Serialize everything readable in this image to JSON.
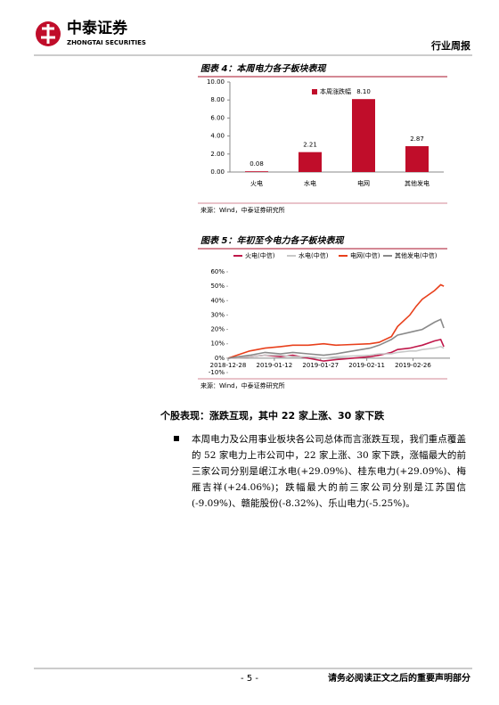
{
  "header": {
    "company": "中泰证券",
    "company_en": "ZHONGTAI SECURITIES",
    "report_type": "行业周报"
  },
  "chart_data": [
    {
      "type": "bar",
      "title": "图表 4：本周电力各子板块表现",
      "categories": [
        "火电",
        "水电",
        "电网",
        "其他发电"
      ],
      "series": [
        {
          "name": "本周涨跌幅",
          "color": "#c00d2a",
          "values": [
            0.08,
            2.21,
            8.1,
            2.87
          ],
          "value_labels": [
            "0.08",
            "2.21",
            "8.10",
            "2.87"
          ]
        }
      ],
      "ylim": [
        0,
        10
      ],
      "yticks": [
        {
          "value": 0,
          "label": "0.00"
        },
        {
          "value": 2,
          "label": "2.00"
        },
        {
          "value": 4,
          "label": "4.00"
        },
        {
          "value": 6,
          "label": "6.00"
        },
        {
          "value": 8,
          "label": "8.00"
        },
        {
          "value": 10,
          "label": "10.00"
        }
      ],
      "source": "来源：Wind，中泰证券研究所"
    },
    {
      "type": "line",
      "title": "图表 5：年初至今电力各子板块表现",
      "x": [
        "2018-12-28",
        "2019-01-04",
        "2019-01-09",
        "2019-01-14",
        "2019-01-18",
        "2019-01-23",
        "2019-01-28",
        "2019-02-01",
        "2019-02-12",
        "2019-02-15",
        "2019-02-19",
        "2019-02-21",
        "2019-02-25",
        "2019-02-27",
        "2019-03-01",
        "2019-03-05",
        "2019-03-07",
        "2019-03-08"
      ],
      "series": [
        {
          "name": "火电(中信)",
          "color": "#c0174a",
          "values": [
            0,
            1,
            2,
            1,
            2,
            0,
            -2,
            -1,
            1,
            2,
            4,
            6,
            7,
            8,
            9,
            12,
            13,
            8
          ]
        },
        {
          "name": "水电(中信)",
          "color": "#c8c8c8",
          "values": [
            0,
            1,
            2,
            2,
            1,
            1,
            0,
            1,
            2,
            3,
            3,
            4,
            5,
            5,
            6,
            7,
            8,
            7
          ]
        },
        {
          "name": "电网(中信)",
          "color": "#e8401c",
          "values": [
            0,
            5,
            7,
            8,
            9,
            9,
            10,
            9,
            10,
            11,
            15,
            22,
            30,
            36,
            41,
            47,
            51,
            50
          ]
        },
        {
          "name": "其他发电(中信)",
          "color": "#8a8a8a",
          "values": [
            0,
            2,
            4,
            3,
            4,
            3,
            2,
            3,
            7,
            9,
            13,
            16,
            18,
            19,
            20,
            25,
            27,
            21
          ]
        }
      ],
      "xlim": [
        "2018-12-28",
        "2019-03-10"
      ],
      "xticks": [
        "2018-12-28",
        "2019-01-12",
        "2019-01-27",
        "2019-02-11",
        "2019-02-26"
      ],
      "ylim": [
        -10,
        60
      ],
      "yticks": [
        {
          "value": 60,
          "label": "60%"
        },
        {
          "value": 50,
          "label": "50%"
        },
        {
          "value": 40,
          "label": "40%"
        },
        {
          "value": 30,
          "label": "30%"
        },
        {
          "value": 20,
          "label": "20%"
        },
        {
          "value": 10,
          "label": "10%"
        },
        {
          "value": 0,
          "label": "0%"
        },
        {
          "value": -10,
          "label": "-10%"
        }
      ],
      "source": "来源：Wind，中泰证券研究所"
    }
  ],
  "section": {
    "heading": "个股表现：涨跌互现，其中 22 家上涨、30 家下跌",
    "bullet": "本周电力及公用事业板块各公司总体而言涨跌互现，我们重点覆盖的 52 家电力上市公司中，22 家上涨、30 家下跌，涨幅最大的前三家公司分别是岷江水电(+29.09%)、桂东电力(+29.09%)、梅雁吉祥(+24.06%)；跌幅最大的前三家公司分别是江苏国信(-9.09%)、赣能股份(-8.32%)、乐山电力(-5.25%)。"
  },
  "footer": {
    "page": "- 5 -",
    "disclaimer": "请务必阅读正文之后的重要声明部分"
  }
}
